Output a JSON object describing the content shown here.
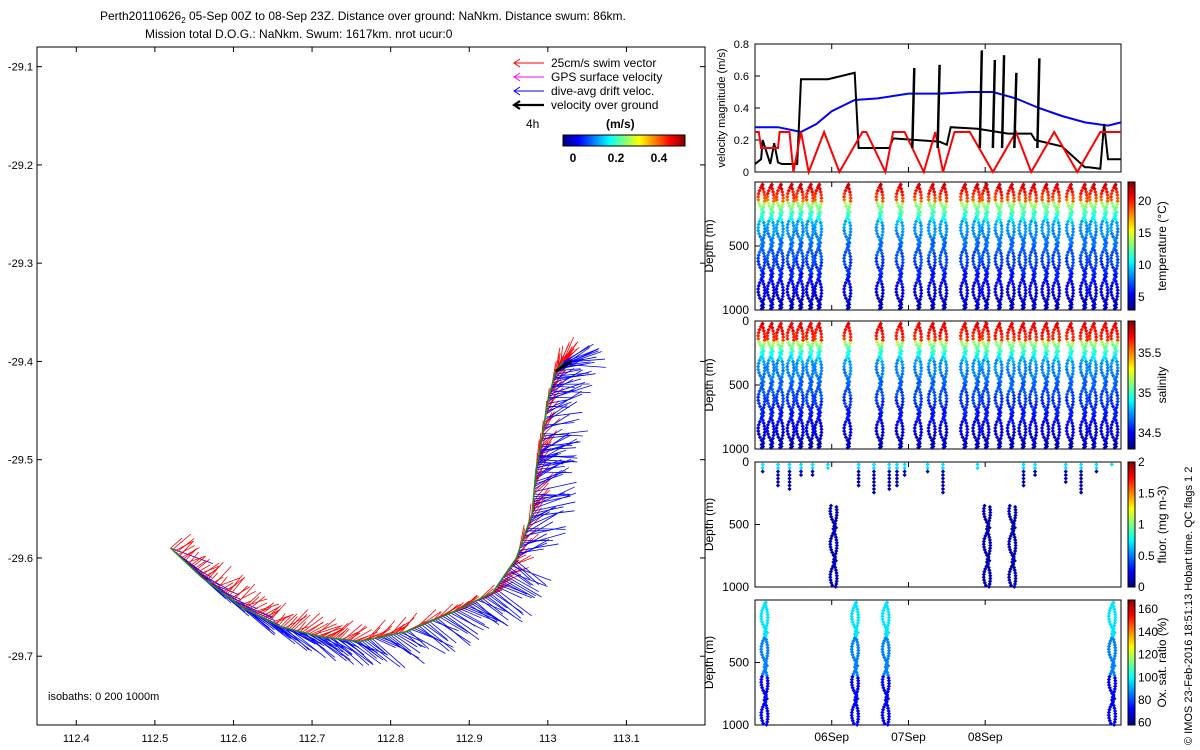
{
  "title": {
    "line1_prefix": "Perth20110626",
    "line1_sub": "2",
    "line1_rest": " 05-Sep 00Z to 08-Sep 23Z. Distance over ground: NaNkm. Distance swum: 86km.",
    "line2": "Mission total D.O.G.: NaNkm. Swum: 1617km. nrot ucur:0"
  },
  "footer": {
    "isobaths": "isobaths: 0   200  1000m",
    "credit": "© IMOS 23-Feb-2016 18:51:13 Hobart time. QC flags 1  2"
  },
  "colors": {
    "swim": "#ff0000",
    "gps": "#ff00ff",
    "drift": "#0000ff",
    "ground": "#000000",
    "track": "#228b22"
  },
  "chart_data": [
    {
      "type": "quiver-map",
      "id": "map",
      "xlim": [
        112.35,
        113.2
      ],
      "ylim": [
        -29.77,
        -29.08
      ],
      "x_ticks": [
        "112.4",
        "112.5",
        "112.6",
        "112.7",
        "112.8",
        "112.9",
        "113",
        "113.1"
      ],
      "y_ticks": [
        "-29.1",
        "-29.2",
        "-29.3",
        "-29.4",
        "-29.5",
        "-29.6",
        "-29.7"
      ],
      "legend": {
        "placement": "top-right",
        "items": [
          {
            "key": "swim",
            "label": "25cm/s swim vector"
          },
          {
            "key": "gps",
            "label": "GPS surface velocity"
          },
          {
            "key": "drift",
            "label": "dive-avg drift veloc."
          },
          {
            "key": "ground",
            "label": "velocity over ground"
          }
        ],
        "scale_label": "4h",
        "colorbar_title": "(m/s)",
        "colorbar_ticks": [
          "0",
          "0.2",
          "0.4"
        ]
      },
      "track_lon": [
        112.52,
        112.56,
        112.61,
        112.66,
        112.71,
        112.76,
        112.82,
        112.88,
        112.93,
        112.96,
        112.98,
        112.985,
        112.99,
        113.0,
        113.01,
        113.02
      ],
      "track_lat": [
        -29.59,
        -29.62,
        -29.65,
        -29.67,
        -29.68,
        -29.685,
        -29.675,
        -29.655,
        -29.635,
        -29.6,
        -29.555,
        -29.51,
        -29.49,
        -29.44,
        -29.41,
        -29.4
      ]
    },
    {
      "type": "line",
      "id": "velocity",
      "ylabel": "velocity magnitude (m/s)",
      "ylim": [
        0,
        0.8
      ],
      "y_ticks": [
        "0",
        "0.2",
        "0.4",
        "0.6",
        "0.8"
      ],
      "xlim": [
        0,
        4.77
      ],
      "x_ticks": [
        {
          "x": 1.0,
          "label": "06Sep"
        },
        {
          "x": 2.0,
          "label": "07Sep"
        },
        {
          "x": 3.0,
          "label": "08Sep"
        }
      ],
      "series": [
        {
          "key": "drift",
          "x": [
            0,
            0.3,
            0.6,
            0.8,
            1.0,
            1.3,
            1.6,
            2.0,
            2.4,
            2.8,
            3.1,
            3.4,
            3.7,
            4.0,
            4.3,
            4.6,
            4.77
          ],
          "y": [
            0.28,
            0.28,
            0.25,
            0.3,
            0.38,
            0.45,
            0.46,
            0.49,
            0.49,
            0.5,
            0.5,
            0.46,
            0.4,
            0.35,
            0.31,
            0.29,
            0.31
          ]
        },
        {
          "key": "ground",
          "x": [
            0,
            0.08,
            0.1,
            0.2,
            0.25,
            0.3,
            0.35,
            0.55,
            0.6,
            0.95,
            1.3,
            1.35,
            1.75,
            1.8,
            2.4,
            2.5,
            2.55,
            2.9,
            3.3,
            3.6,
            3.65,
            4.0,
            4.3,
            4.35,
            4.5,
            4.55,
            4.6,
            4.77
          ],
          "y": [
            0.05,
            0.08,
            0.2,
            0.05,
            0.18,
            0.06,
            0.05,
            0.05,
            0.58,
            0.58,
            0.62,
            0.15,
            0.15,
            0.21,
            0.19,
            0.17,
            0.28,
            0.27,
            0.24,
            0.24,
            0.2,
            0.16,
            0.03,
            0.03,
            0.02,
            0.3,
            0.08,
            0.08
          ]
        },
        {
          "key": "swim",
          "x": [
            0,
            0.05,
            0.08,
            0.3,
            0.32,
            0.45,
            0.5,
            0.6,
            0.7,
            0.9,
            1.1,
            1.4,
            1.45,
            1.7,
            1.8,
            1.95,
            2.2,
            2.35,
            2.45,
            2.6,
            2.8,
            3.1,
            3.4,
            3.6,
            3.9,
            4.2,
            4.5,
            4.77
          ],
          "y": [
            0.25,
            0.25,
            0.15,
            0.15,
            0.25,
            0.25,
            0.0,
            0.25,
            0.0,
            0.25,
            0.0,
            0.25,
            0.25,
            0.0,
            0.25,
            0.25,
            0.0,
            0.25,
            0.0,
            0.25,
            0.25,
            0.0,
            0.25,
            0.0,
            0.25,
            0.0,
            0.25,
            0.25
          ]
        },
        {
          "key": "ground_spikes",
          "x": [
            2.05,
            2.38,
            2.93,
            3.1,
            3.22,
            3.38,
            3.68
          ],
          "y": [
            0.65,
            0.67,
            0.76,
            0.7,
            0.73,
            0.62,
            0.71
          ]
        }
      ]
    },
    {
      "type": "scatter",
      "id": "temperature",
      "ylabel": "Depth (m)",
      "clabel": "temperature (°C)",
      "ylim": [
        1000,
        0
      ],
      "y_ticks": [
        "500",
        "1000"
      ],
      "clim": [
        3,
        23
      ],
      "c_ticks": [
        "5",
        "10",
        "15",
        "20"
      ],
      "profiles": [
        0.08,
        0.2,
        0.32,
        0.46,
        0.58,
        0.71,
        0.82,
        1.2,
        1.62,
        1.88,
        2.12,
        2.3,
        2.45,
        2.72,
        2.88,
        3.0,
        3.17,
        3.33,
        3.48,
        3.62,
        3.78,
        3.92,
        4.1,
        4.28,
        4.4,
        4.55,
        4.68
      ]
    },
    {
      "type": "scatter",
      "id": "salinity",
      "ylabel": "Depth (m)",
      "clabel": "salinity",
      "ylim": [
        1000,
        0
      ],
      "y_ticks": [
        "0",
        "500",
        "1000"
      ],
      "clim": [
        34.3,
        35.9
      ],
      "c_ticks": [
        "34.5",
        "35",
        "35.5"
      ],
      "profiles": [
        0.08,
        0.2,
        0.32,
        0.46,
        0.58,
        0.71,
        0.82,
        1.2,
        1.62,
        1.88,
        2.12,
        2.3,
        2.45,
        2.72,
        2.88,
        3.0,
        3.17,
        3.33,
        3.48,
        3.62,
        3.78,
        3.92,
        4.1,
        4.28,
        4.4,
        4.55,
        4.68
      ]
    },
    {
      "type": "scatter",
      "id": "fluor",
      "ylabel": "Depth (m)",
      "clabel": "fluor. (mg m-3)",
      "ylim": [
        1000,
        0
      ],
      "y_ticks": [
        "0",
        "500",
        "1000"
      ],
      "clim": [
        0,
        2
      ],
      "c_ticks": [
        "0",
        "0.5",
        "1",
        "1.5",
        "2"
      ],
      "deep_profiles": [
        1.02,
        3.02,
        3.35
      ],
      "shallow_points": [
        0.1,
        0.3,
        0.45,
        0.6,
        0.75,
        0.95,
        1.35,
        1.55,
        1.75,
        1.85,
        1.95,
        2.25,
        2.45,
        2.9,
        3.5,
        3.65,
        4.05,
        4.25,
        4.45,
        4.65
      ]
    },
    {
      "type": "scatter",
      "id": "oxygen",
      "ylabel": "Depth (m)",
      "clabel": "Ox. sat. ratio (%)",
      "ylim": [
        1000,
        0
      ],
      "y_ticks": [
        "500",
        "1000"
      ],
      "clim": [
        58,
        168
      ],
      "c_ticks": [
        "60",
        "80",
        "100",
        "120",
        "140",
        "160"
      ],
      "deep_profiles": [
        0.12,
        1.3,
        1.7,
        4.65
      ]
    }
  ]
}
